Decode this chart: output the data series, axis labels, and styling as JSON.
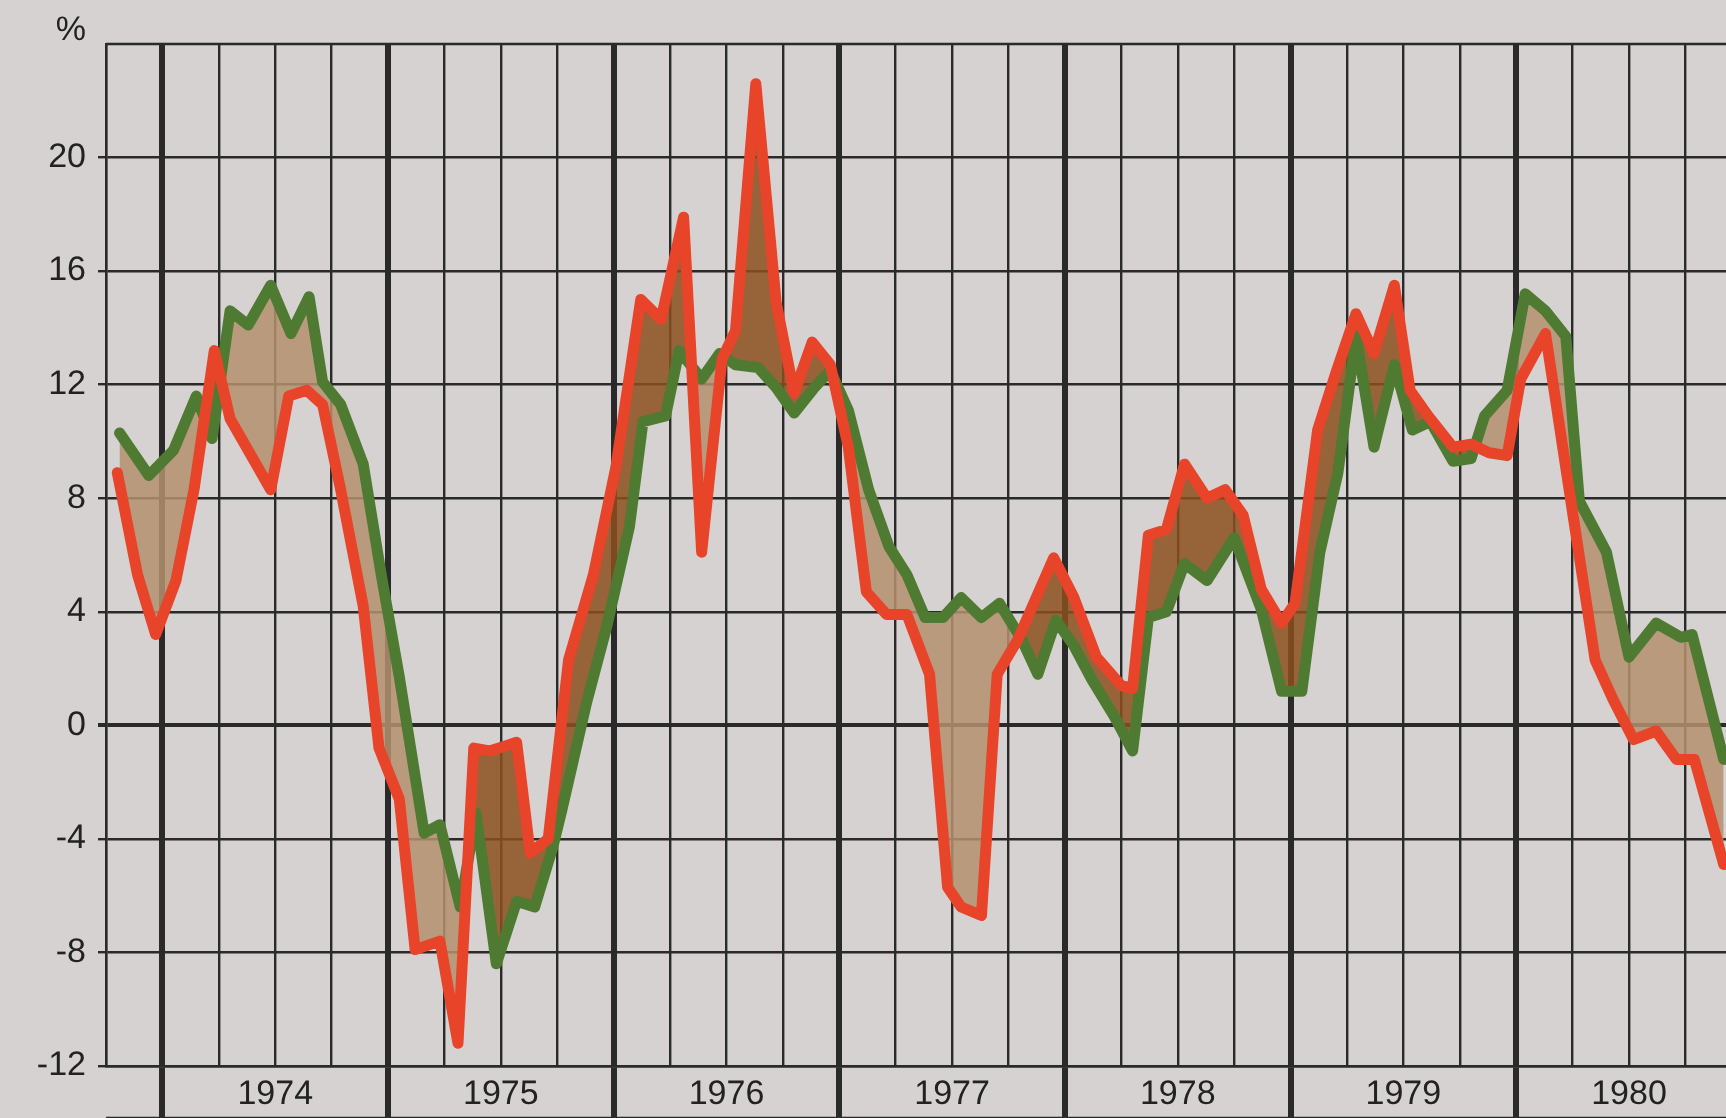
{
  "chart_data": {
    "type": "line",
    "ylabel": "%",
    "xlim": [
      1973.75,
      1980.93
    ],
    "ylim": [
      -12,
      24
    ],
    "xticks": [
      {
        "value": 1973.75,
        "label": null
      },
      {
        "value": 1974,
        "label": null
      },
      {
        "value": 1974.25,
        "label": null
      },
      {
        "value": 1974.5,
        "label": "1974"
      },
      {
        "value": 1974.75,
        "label": null
      },
      {
        "value": 1975,
        "label": null
      },
      {
        "value": 1975.25,
        "label": null
      },
      {
        "value": 1975.5,
        "label": "1975"
      },
      {
        "value": 1975.75,
        "label": null
      },
      {
        "value": 1976,
        "label": null
      },
      {
        "value": 1976.25,
        "label": null
      },
      {
        "value": 1976.5,
        "label": "1976"
      },
      {
        "value": 1976.75,
        "label": null
      },
      {
        "value": 1977,
        "label": null
      },
      {
        "value": 1977.25,
        "label": null
      },
      {
        "value": 1977.5,
        "label": "1977"
      },
      {
        "value": 1977.75,
        "label": null
      },
      {
        "value": 1978,
        "label": null
      },
      {
        "value": 1978.25,
        "label": null
      },
      {
        "value": 1978.5,
        "label": "1978"
      },
      {
        "value": 1978.75,
        "label": null
      },
      {
        "value": 1979,
        "label": null
      },
      {
        "value": 1979.25,
        "label": null
      },
      {
        "value": 1979.5,
        "label": "1979"
      },
      {
        "value": 1979.75,
        "label": null
      },
      {
        "value": 1980,
        "label": null
      },
      {
        "value": 1980.25,
        "label": null
      },
      {
        "value": 1980.5,
        "label": "1980"
      },
      {
        "value": 1980.75,
        "label": null
      }
    ],
    "yticks": [
      -12,
      -8,
      -4,
      0,
      4,
      8,
      12,
      16,
      20
    ],
    "grid": true,
    "legend": false,
    "marker": "none",
    "line_style": "solid",
    "series": [
      {
        "color": "#e8442a",
        "x": [
          1973.8,
          1973.89,
          1973.97,
          1974.06,
          1974.14,
          1974.23,
          1974.3,
          1974.48,
          1974.56,
          1974.64,
          1974.71,
          1974.79,
          1974.89,
          1974.96,
          1975.05,
          1975.12,
          1975.23,
          1975.31,
          1975.38,
          1975.45,
          1975.57,
          1975.63,
          1975.71,
          1975.8,
          1975.91,
          1976.01,
          1976.12,
          1976.21,
          1976.31,
          1976.39,
          1976.48,
          1976.54,
          1976.63,
          1976.72,
          1976.8,
          1976.88,
          1976.96,
          1977.04,
          1977.12,
          1977.21,
          1977.3,
          1977.4,
          1977.48,
          1977.54,
          1977.63,
          1977.7,
          1977.79,
          1977.95,
          1978.04,
          1978.14,
          1978.25,
          1978.3,
          1978.37,
          1978.45,
          1978.53,
          1978.63,
          1978.71,
          1978.79,
          1978.87,
          1978.96,
          1979.02,
          1979.12,
          1979.2,
          1979.29,
          1979.37,
          1979.46,
          1979.53,
          1979.61,
          1979.72,
          1979.8,
          1979.88,
          1979.96,
          1980.02,
          1980.13,
          1980.25,
          1980.35,
          1980.43,
          1980.52,
          1980.62,
          1980.71,
          1980.79,
          1980.92
        ],
        "values": [
          8.9,
          5.3,
          3.2,
          5.1,
          8.3,
          13.2,
          10.8,
          8.3,
          11.6,
          11.8,
          11.3,
          8.3,
          4.2,
          -0.8,
          -2.6,
          -7.9,
          -7.6,
          -11.2,
          -0.8,
          -0.9,
          -0.6,
          -4.5,
          -4.0,
          2.3,
          5.3,
          9.1,
          15.0,
          14.3,
          17.9,
          6.1,
          12.9,
          13.9,
          22.6,
          14.9,
          11.7,
          13.5,
          12.7,
          9.8,
          4.7,
          3.9,
          3.9,
          1.8,
          -5.7,
          -6.4,
          -6.7,
          1.8,
          3.0,
          5.9,
          4.5,
          2.4,
          1.4,
          1.3,
          6.7,
          6.9,
          9.2,
          8.0,
          8.3,
          7.4,
          4.8,
          3.6,
          4.3,
          10.4,
          12.4,
          14.5,
          13.1,
          15.5,
          11.8,
          10.9,
          9.8,
          9.9,
          9.6,
          9.5,
          12.2,
          13.8,
          7.5,
          2.3,
          0.9,
          -0.5,
          -0.2,
          -1.2,
          -1.2,
          -4.9
        ]
      },
      {
        "color": "#4f7a32",
        "x": [
          1973.81,
          1973.94,
          1974.05,
          1974.15,
          1974.22,
          1974.3,
          1974.38,
          1974.48,
          1974.57,
          1974.65,
          1974.71,
          1974.79,
          1974.89,
          1974.97,
          1975.05,
          1975.16,
          1975.23,
          1975.32,
          1975.39,
          1975.48,
          1975.57,
          1975.65,
          1975.73,
          1975.77,
          1975.88,
          1975.97,
          1976.07,
          1976.13,
          1976.23,
          1976.29,
          1976.39,
          1976.47,
          1976.54,
          1976.64,
          1976.72,
          1976.8,
          1976.89,
          1976.96,
          1977.04,
          1977.13,
          1977.22,
          1977.3,
          1977.38,
          1977.46,
          1977.54,
          1977.63,
          1977.71,
          1977.81,
          1977.88,
          1977.96,
          1978.04,
          1978.12,
          1978.22,
          1978.3,
          1978.37,
          1978.45,
          1978.53,
          1978.63,
          1978.75,
          1978.87,
          1978.96,
          1979.05,
          1979.13,
          1979.21,
          1979.29,
          1979.37,
          1979.46,
          1979.54,
          1979.62,
          1979.72,
          1979.8,
          1979.86,
          1979.96,
          1980.04,
          1980.13,
          1980.22,
          1980.28,
          1980.4,
          1980.5,
          1980.62,
          1980.73,
          1980.78,
          1980.92
        ],
        "values": [
          10.3,
          8.8,
          9.7,
          11.6,
          10.1,
          14.6,
          14.1,
          15.5,
          13.8,
          15.1,
          12.1,
          11.3,
          9.2,
          5.3,
          1.7,
          -3.8,
          -3.5,
          -6.4,
          -3.1,
          -8.4,
          -6.2,
          -6.4,
          -4.3,
          -3.0,
          0.8,
          3.5,
          7.0,
          10.7,
          10.9,
          13.2,
          12.2,
          13.1,
          12.7,
          12.6,
          11.9,
          11.0,
          11.9,
          12.5,
          11.1,
          8.3,
          6.3,
          5.3,
          3.8,
          3.8,
          4.5,
          3.8,
          4.3,
          3.0,
          1.8,
          3.7,
          2.8,
          1.6,
          0.3,
          -0.9,
          3.8,
          4.0,
          5.7,
          5.1,
          6.6,
          4.1,
          1.2,
          1.2,
          6.1,
          8.9,
          13.7,
          9.8,
          12.7,
          10.4,
          10.7,
          9.3,
          9.4,
          10.9,
          11.8,
          15.2,
          14.6,
          13.7,
          7.9,
          6.1,
          2.4,
          3.6,
          3.1,
          3.2,
          -1.2
        ]
      }
    ]
  }
}
